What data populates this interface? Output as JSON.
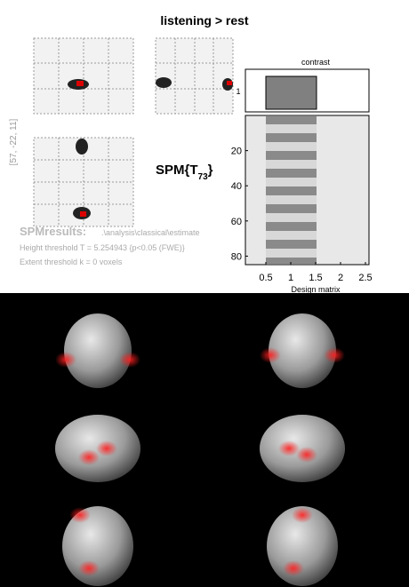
{
  "header": {
    "title": "listening > rest"
  },
  "glass_brain": {
    "coordinates": "[57, -22, 11]",
    "statistic": {
      "prefix": "SPM{T",
      "df": "73",
      "suffix": "}"
    }
  },
  "results": {
    "name": "SPMresults:",
    "path": ".\\analysis\\classical\\estimate",
    "height_threshold": "Height threshold T = 5.254943  {p<0.05 (FWE)}",
    "extent_threshold": "Extent threshold k = 0 voxels"
  },
  "contrast": {
    "title": "contrast",
    "ytick": "1"
  },
  "design_matrix": {
    "label": "Design matrix",
    "yticks": [
      20,
      40,
      60,
      80
    ],
    "xticks": [
      0.5,
      1,
      1.5,
      2,
      2.5
    ]
  }
}
